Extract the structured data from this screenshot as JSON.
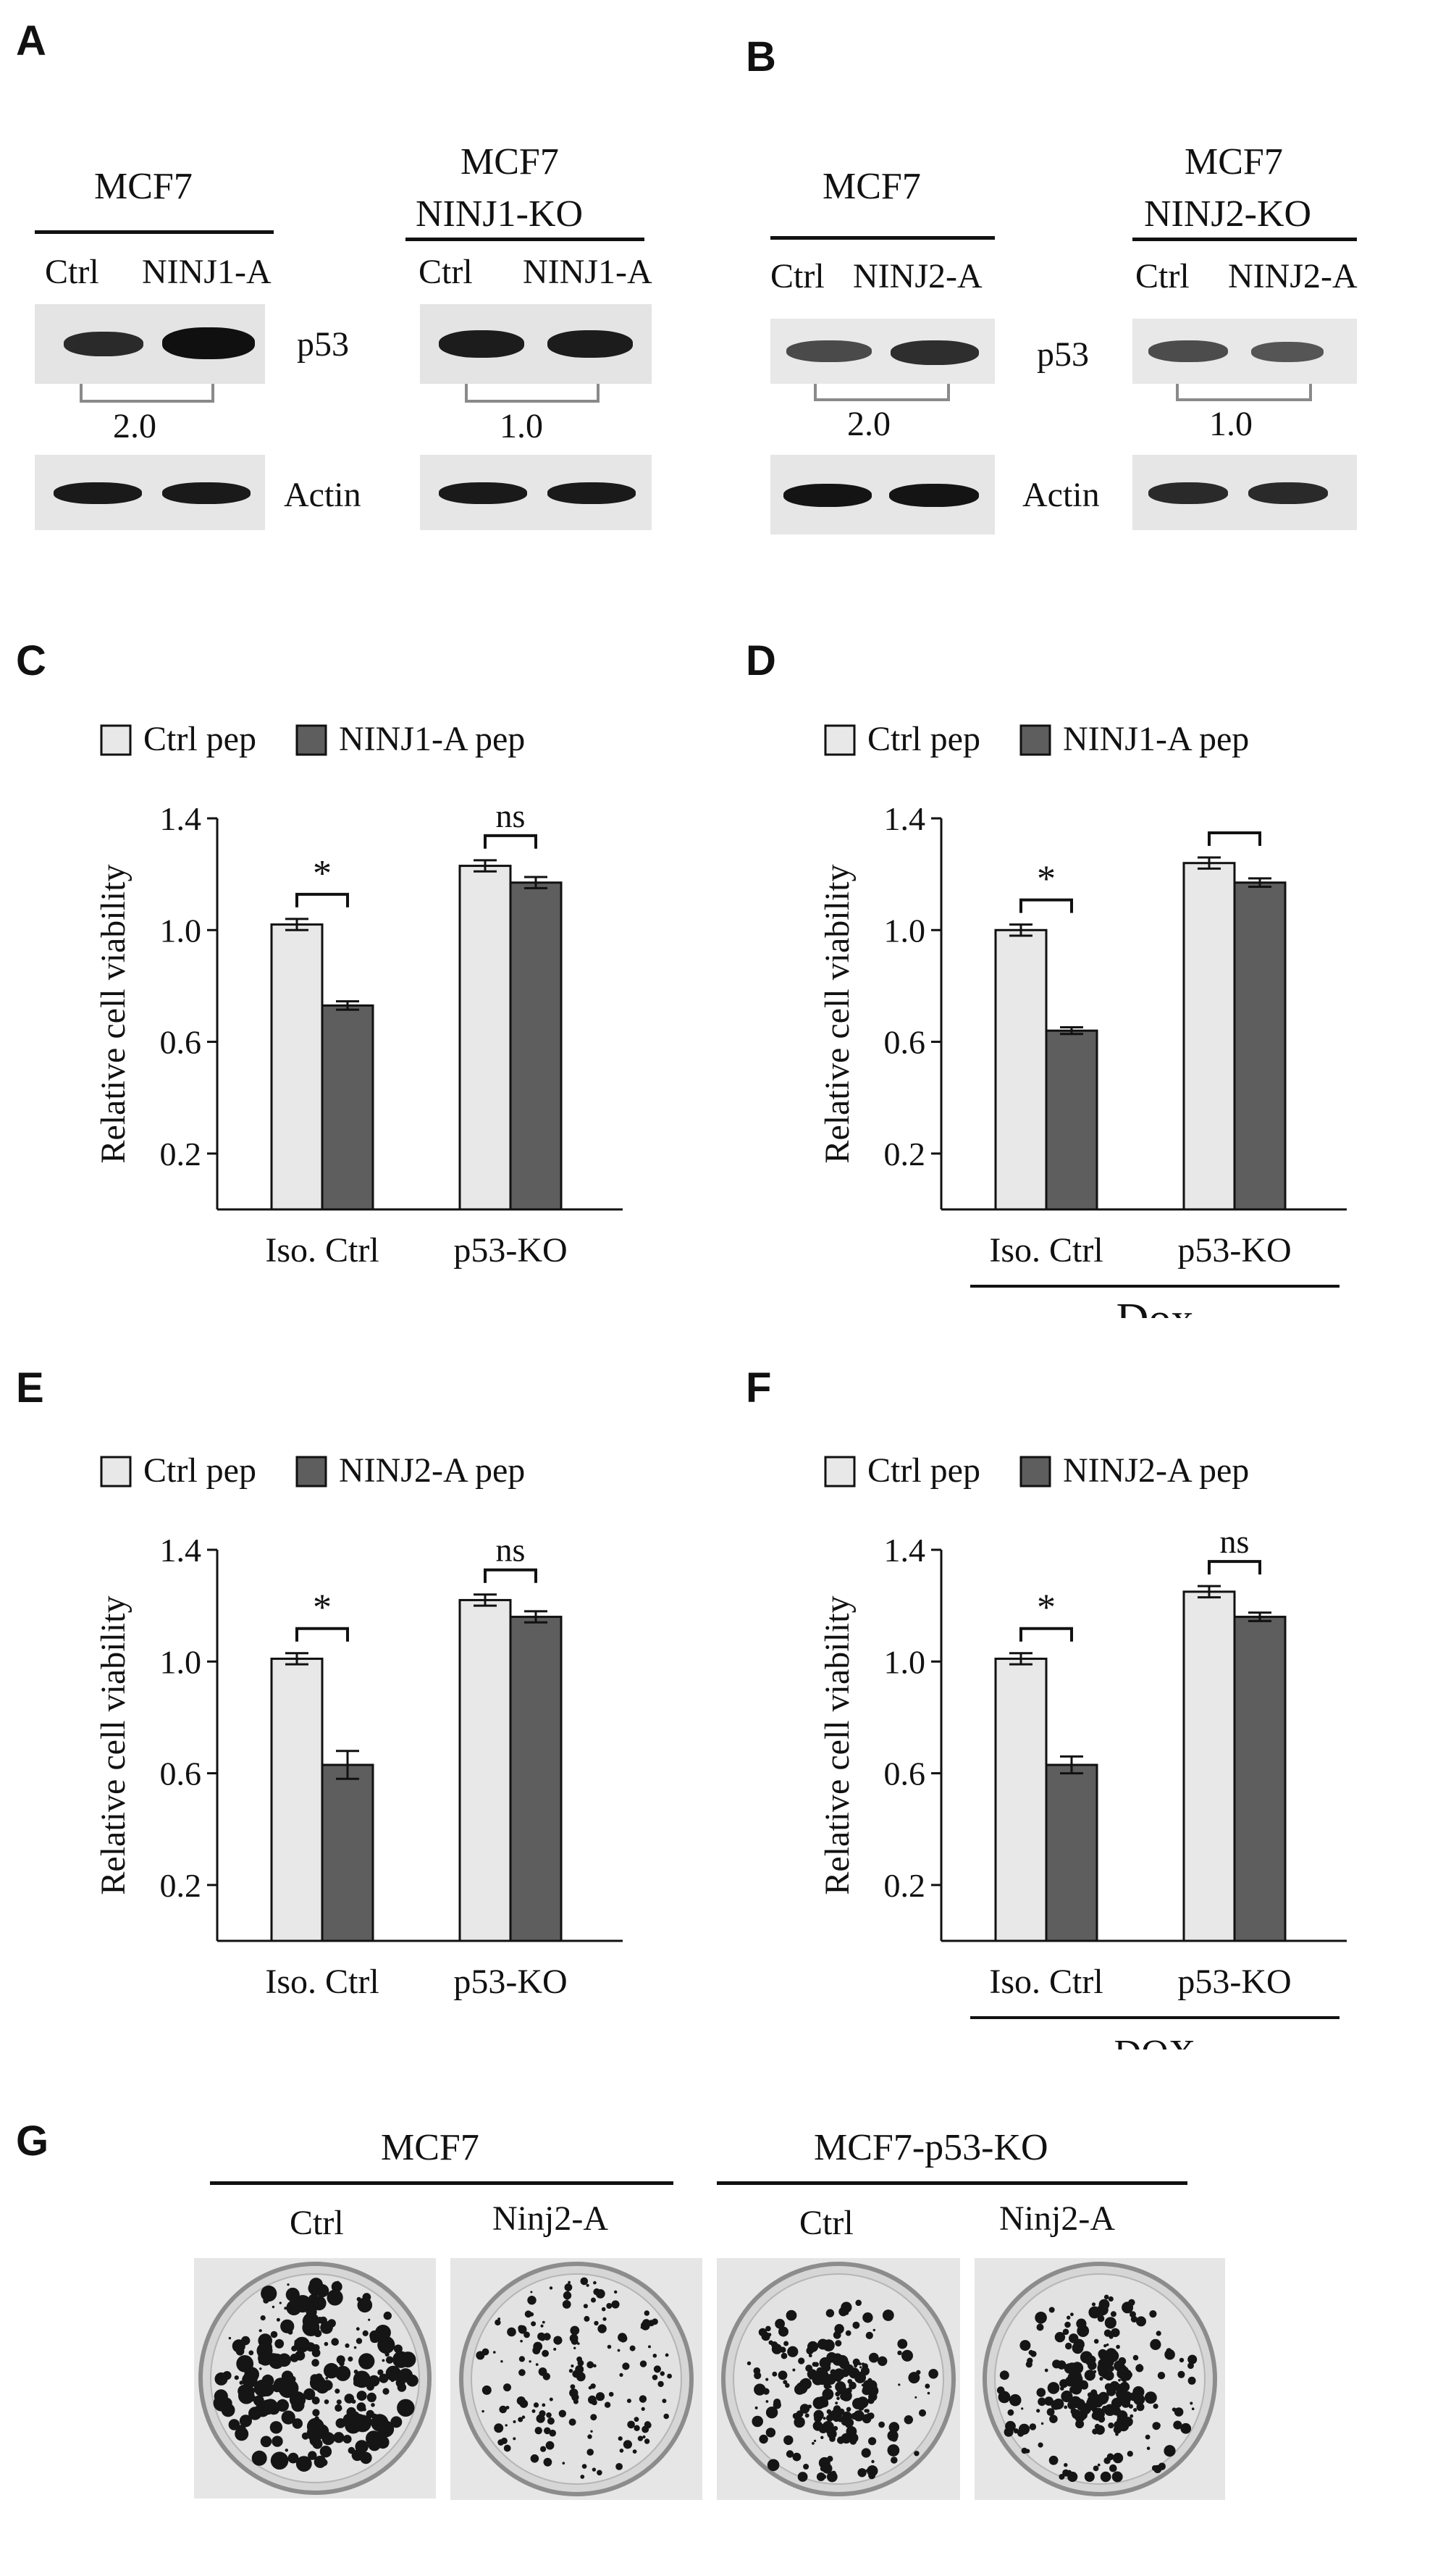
{
  "panel_labels": {
    "a": "A",
    "b": "B",
    "c": "C",
    "d": "D",
    "e": "E",
    "f": "F",
    "g": "G"
  },
  "western_blots": {
    "A": {
      "left": {
        "header": "MCF7",
        "lanes": [
          "Ctrl",
          "NINJ1-A"
        ],
        "ratio": "2.0"
      },
      "right": {
        "header_line1": "MCF7",
        "header_line2": "NINJ1-KO",
        "lanes": [
          "Ctrl",
          "NINJ1-A"
        ],
        "ratio": "1.0"
      },
      "row_labels": [
        "p53",
        "Actin"
      ]
    },
    "B": {
      "left": {
        "header": "MCF7",
        "lanes": [
          "Ctrl",
          "NINJ2-A"
        ],
        "ratio": "2.0"
      },
      "right": {
        "header_line1": "MCF7",
        "header_line2": "NINJ2-KO",
        "lanes": [
          "Ctrl",
          "NINJ2-A"
        ],
        "ratio": "1.0"
      },
      "row_labels": [
        "p53",
        "Actin"
      ]
    }
  },
  "colors": {
    "ctrl_bar": "#e8e8e8",
    "treat_bar": "#5e5e5e",
    "ink": "#111111"
  },
  "chart_data": [
    {
      "panel": "C",
      "type": "bar",
      "legend": [
        "Ctrl pep",
        "NINJ1-A pep"
      ],
      "ylabel": "Relative cell viability",
      "yticks": [
        "0.2",
        "0.6",
        "1.0",
        "1.4"
      ],
      "ylim": [
        0,
        1.4
      ],
      "categories": [
        "Iso. Ctrl",
        "p53-KO"
      ],
      "series": [
        {
          "name": "Ctrl pep",
          "values": [
            1.02,
            1.23
          ],
          "errors": [
            0.02,
            0.02
          ]
        },
        {
          "name": "NINJ1-A pep",
          "values": [
            0.73,
            1.17
          ],
          "errors": [
            0.015,
            0.02
          ]
        }
      ],
      "significance": [
        "*",
        "ns"
      ],
      "group_label": ""
    },
    {
      "panel": "D",
      "type": "bar",
      "legend": [
        "Ctrl pep",
        "NINJ1-A pep"
      ],
      "ylabel": "Relative cell viability",
      "yticks": [
        "0.2",
        "0.6",
        "1.0",
        "1.4"
      ],
      "ylim": [
        0,
        1.4
      ],
      "categories": [
        "Iso. Ctrl",
        "p53-KO"
      ],
      "series": [
        {
          "name": "Ctrl pep",
          "values": [
            1.0,
            1.24
          ],
          "errors": [
            0.02,
            0.02
          ]
        },
        {
          "name": "NINJ1-A pep",
          "values": [
            0.64,
            1.17
          ],
          "errors": [
            0.012,
            0.015
          ]
        }
      ],
      "significance": [
        "*",
        ""
      ],
      "group_label": "Dox"
    },
    {
      "panel": "E",
      "type": "bar",
      "legend": [
        "Ctrl pep",
        "NINJ2-A pep"
      ],
      "ylabel": "Relative cell viability",
      "yticks": [
        "0.2",
        "0.6",
        "1.0",
        "1.4"
      ],
      "ylim": [
        0,
        1.4
      ],
      "categories": [
        "Iso. Ctrl",
        "p53-KO"
      ],
      "series": [
        {
          "name": "Ctrl pep",
          "values": [
            1.01,
            1.22
          ],
          "errors": [
            0.02,
            0.02
          ]
        },
        {
          "name": "NINJ2-A pep",
          "values": [
            0.63,
            1.16
          ],
          "errors": [
            0.05,
            0.02
          ]
        }
      ],
      "significance": [
        "*",
        "ns"
      ],
      "group_label": ""
    },
    {
      "panel": "F",
      "type": "bar",
      "legend": [
        "Ctrl pep",
        "NINJ2-A pep"
      ],
      "ylabel": "Relative cell viability",
      "yticks": [
        "0.2",
        "0.6",
        "1.0",
        "1.4"
      ],
      "ylim": [
        0,
        1.4
      ],
      "categories": [
        "Iso. Ctrl",
        "p53-KO"
      ],
      "series": [
        {
          "name": "Ctrl pep",
          "values": [
            1.01,
            1.25
          ],
          "errors": [
            0.02,
            0.02
          ]
        },
        {
          "name": "NINJ2-A pep",
          "values": [
            0.63,
            1.16
          ],
          "errors": [
            0.03,
            0.015
          ]
        }
      ],
      "significance": [
        "*",
        "ns"
      ],
      "group_label": "DOX"
    }
  ],
  "colony_assay": {
    "groups": [
      "MCF7",
      "MCF7-p53-KO"
    ],
    "lanes": [
      "Ctrl",
      "Ninj2-A",
      "Ctrl",
      "Ninj2-A"
    ]
  }
}
